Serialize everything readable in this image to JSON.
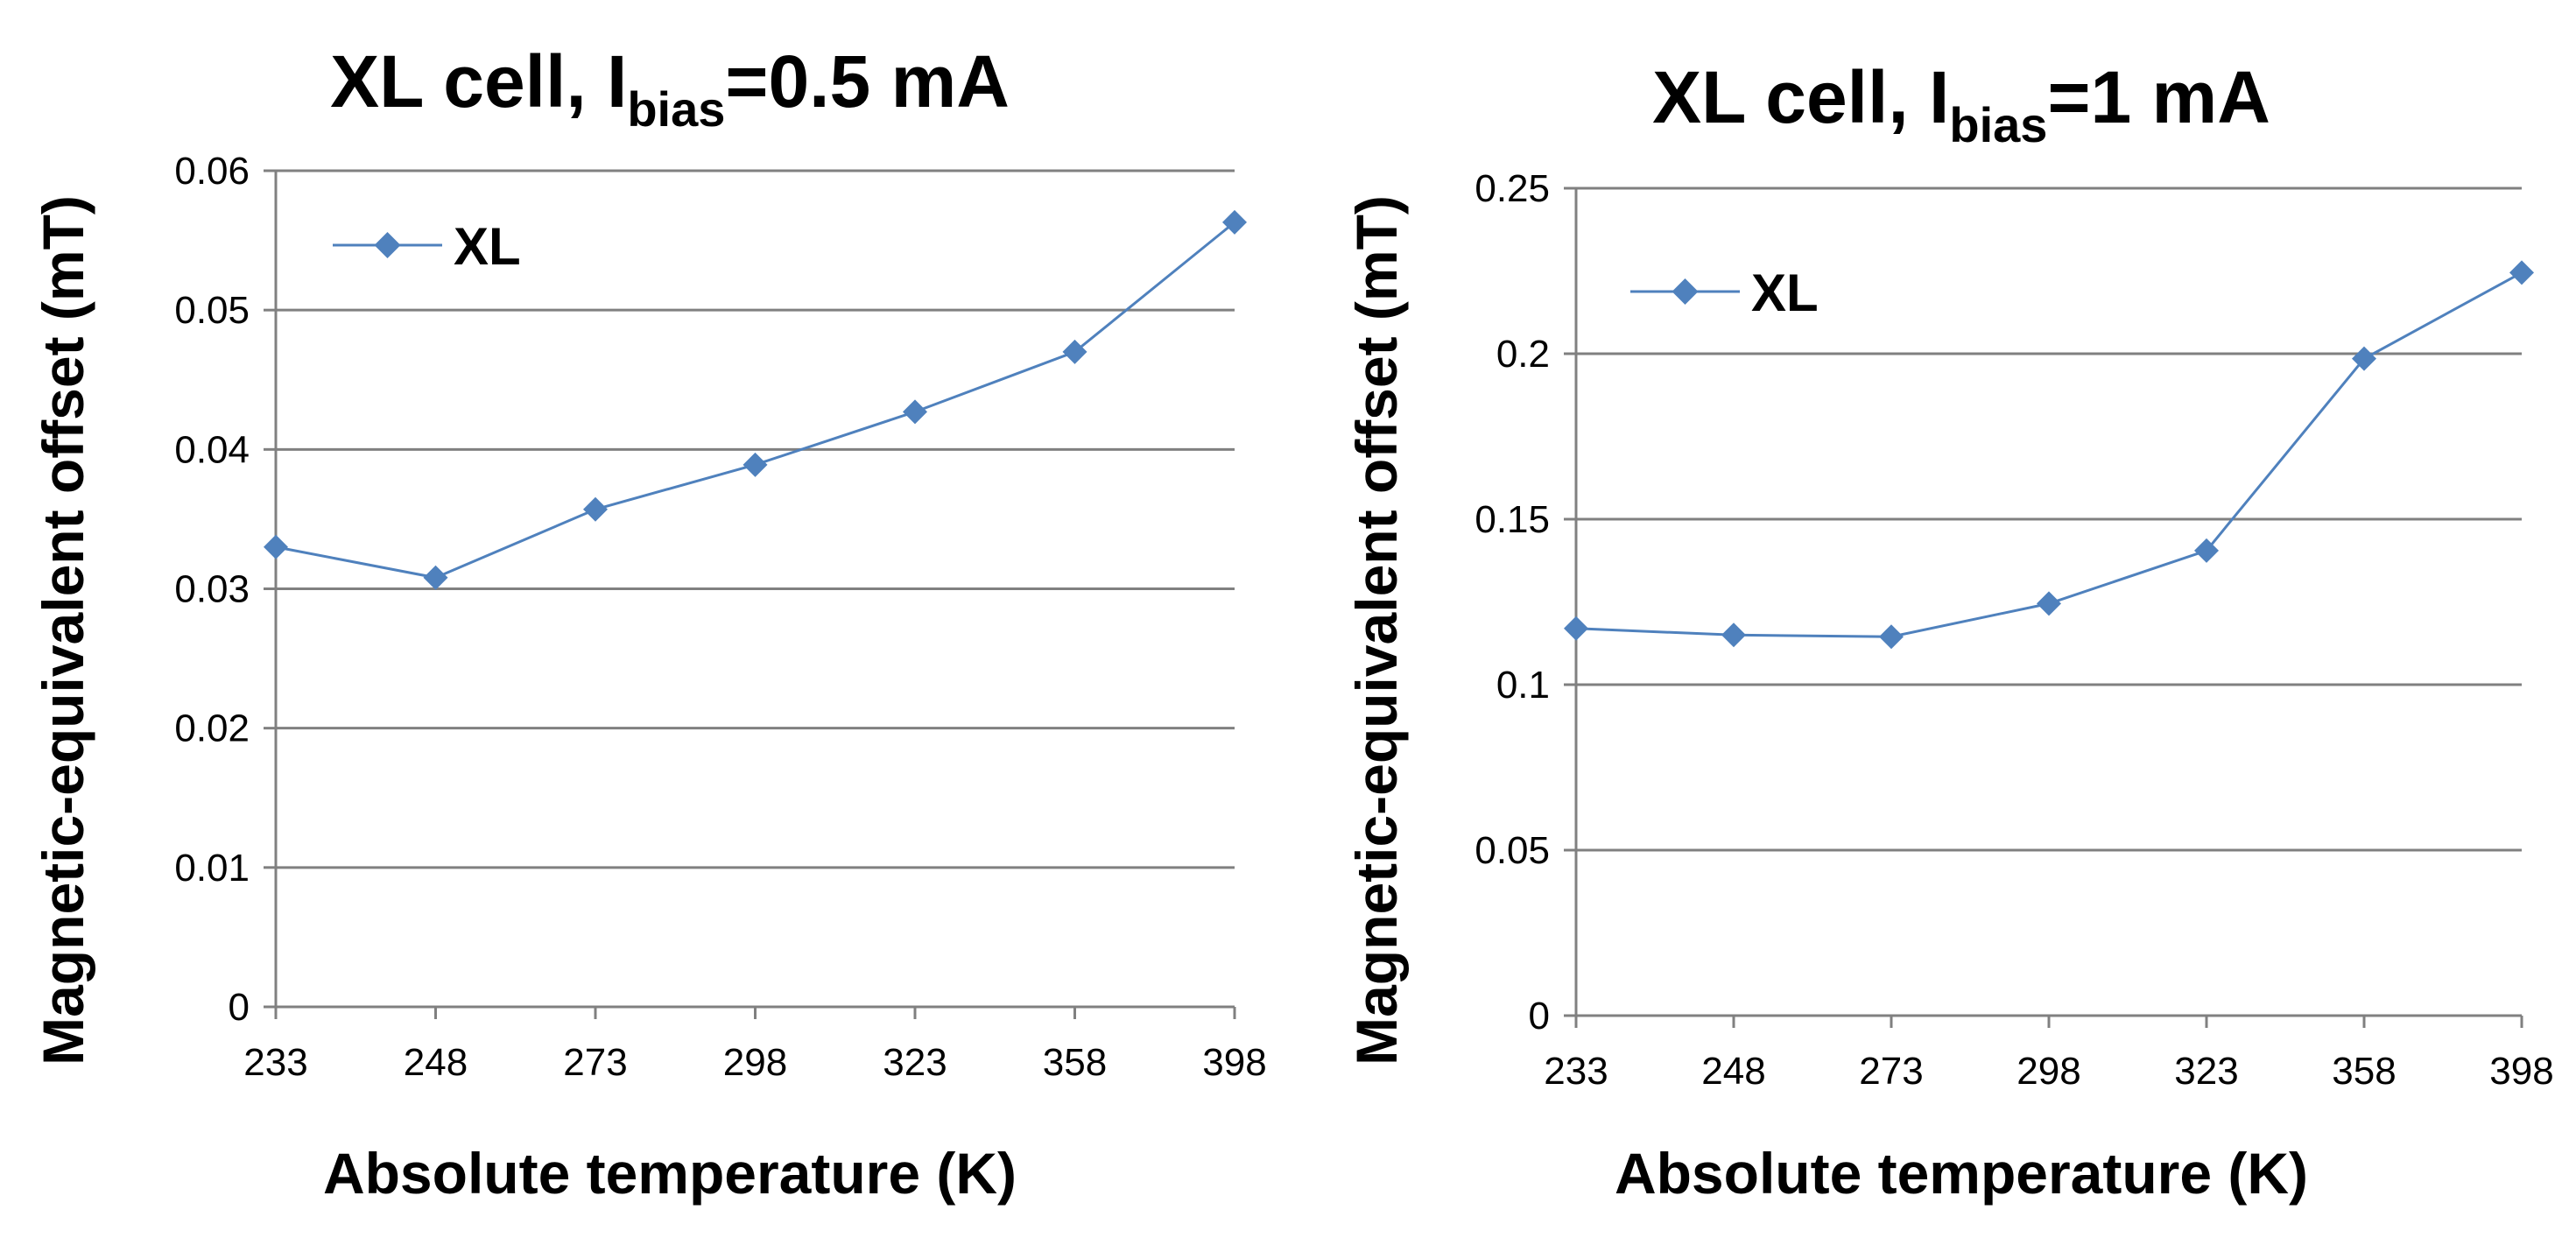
{
  "chart_data": [
    {
      "type": "line",
      "title": {
        "pre": "XL cell, I",
        "sub": "bias",
        "post": "=0.5 mA"
      },
      "xlabel": "Absolute temperature (K)",
      "ylabel": "Magnetic-equivalent offset (mT)",
      "categories": [
        "233",
        "248",
        "273",
        "298",
        "323",
        "358",
        "398"
      ],
      "ylim": [
        0,
        0.06
      ],
      "yticks": [
        "0",
        "0.01",
        "0.02",
        "0.03",
        "0.04",
        "0.05",
        "0.06"
      ],
      "grid": true,
      "legend_position": "top-left",
      "series": [
        {
          "name": "XL",
          "color": "#4F81BD",
          "marker": "diamond",
          "values": [
            0.033,
            0.0308,
            0.0357,
            0.0389,
            0.0427,
            0.047,
            0.0563
          ]
        }
      ]
    },
    {
      "type": "line",
      "title": {
        "pre": "XL cell, I",
        "sub": "bias",
        "post": "=1 mA"
      },
      "xlabel": "Absolute temperature (K)",
      "ylabel": "Magnetic-equivalent offset (mT)",
      "categories": [
        "233",
        "248",
        "273",
        "298",
        "323",
        "358",
        "398"
      ],
      "ylim": [
        0,
        0.25
      ],
      "yticks": [
        "0",
        "0.05",
        "0.1",
        "0.15",
        "0.2",
        "0.25"
      ],
      "grid": true,
      "legend_position": "top-left",
      "series": [
        {
          "name": "XL",
          "color": "#4F81BD",
          "marker": "diamond",
          "values": [
            0.117,
            0.115,
            0.1145,
            0.1245,
            0.1405,
            0.1985,
            0.2245
          ]
        }
      ]
    }
  ]
}
